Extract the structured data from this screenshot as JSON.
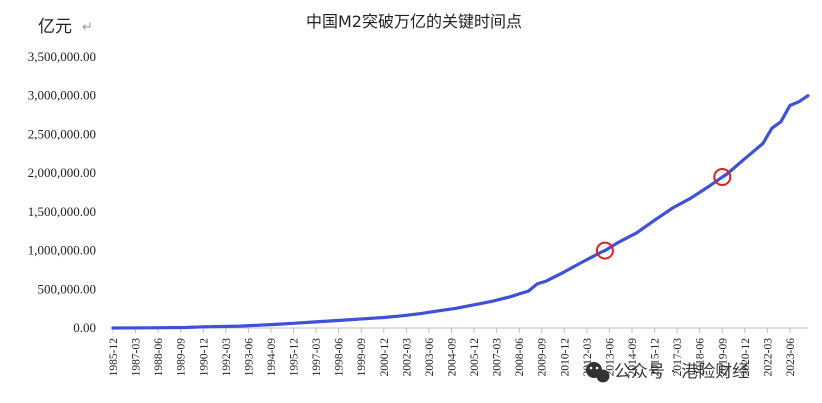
{
  "chart_data": {
    "type": "line",
    "title": "中国M2突破万亿的关键时间点",
    "unit_label": "亿元",
    "ylim": [
      0,
      3500000
    ],
    "y_ticks": [
      "0.00",
      "500,000.00",
      "1,000,000.00",
      "1,500,000.00",
      "2,000,000.00",
      "2,500,000.00",
      "3,000,000.00",
      "3,500,000.00"
    ],
    "x_tick_labels": [
      "1985-12",
      "1987-03",
      "1988-06",
      "1989-09",
      "1990-12",
      "1992-03",
      "1993-06",
      "1994-09",
      "1995-12",
      "1997-03",
      "1998-06",
      "1999-09",
      "2000-12",
      "2002-03",
      "2003-06",
      "2004-09",
      "2005-12",
      "2007-03",
      "2008-06",
      "2009-09",
      "2010-12",
      "2012-03",
      "2013-06",
      "2014-09",
      "2015-12",
      "2017-03",
      "2018-06",
      "2019-09",
      "2020-12",
      "2022-03",
      "2023-06"
    ],
    "x_range": [
      "1985-12",
      "2024-06"
    ],
    "grid": false,
    "legend": "none",
    "series": [
      {
        "color": "#3f51d8",
        "points": [
          [
            "1985-12",
            1
          ],
          [
            "1987-12",
            2000
          ],
          [
            "1989-12",
            6000
          ],
          [
            "1990-12",
            15000
          ],
          [
            "1992-12",
            25000
          ],
          [
            "1993-12",
            35000
          ],
          [
            "1994-12",
            47000
          ],
          [
            "1995-12",
            61000
          ],
          [
            "1996-12",
            76000
          ],
          [
            "1997-12",
            91000
          ],
          [
            "1998-12",
            105000
          ],
          [
            "1999-12",
            120000
          ],
          [
            "2000-12",
            135000
          ],
          [
            "2001-12",
            158000
          ],
          [
            "2002-12",
            185000
          ],
          [
            "2003-12",
            221000
          ],
          [
            "2004-12",
            254000
          ],
          [
            "2005-12",
            299000
          ],
          [
            "2006-12",
            345000
          ],
          [
            "2007-12",
            403000
          ],
          [
            "2008-06",
            440000
          ],
          [
            "2008-12",
            475000
          ],
          [
            "2009-06",
            570000
          ],
          [
            "2009-12",
            606000
          ],
          [
            "2010-12",
            725000
          ],
          [
            "2011-12",
            852000
          ],
          [
            "2012-12",
            974000
          ],
          [
            "2013-03",
            1000000
          ],
          [
            "2013-12",
            1107000
          ],
          [
            "2014-12",
            1228000
          ],
          [
            "2015-12",
            1392000
          ],
          [
            "2016-12",
            1550000
          ],
          [
            "2017-12",
            1677000
          ],
          [
            "2018-12",
            1827000
          ],
          [
            "2019-09",
            1950000
          ],
          [
            "2019-12",
            1987000
          ],
          [
            "2020-12",
            2186000
          ],
          [
            "2021-12",
            2383000
          ],
          [
            "2022-06",
            2581000
          ],
          [
            "2022-12",
            2664000
          ],
          [
            "2023-06",
            2874000
          ],
          [
            "2023-12",
            2923000
          ],
          [
            "2024-06",
            3000000
          ]
        ]
      }
    ],
    "annotations": [
      {
        "type": "circle",
        "color": "#e02020",
        "date": "2013-03",
        "value": 1000000
      },
      {
        "type": "circle",
        "color": "#e02020",
        "date": "2019-09",
        "value": 1950000
      }
    ]
  },
  "watermark": {
    "text": "公众号 · 港险财经",
    "icon": "wechat-icon"
  }
}
